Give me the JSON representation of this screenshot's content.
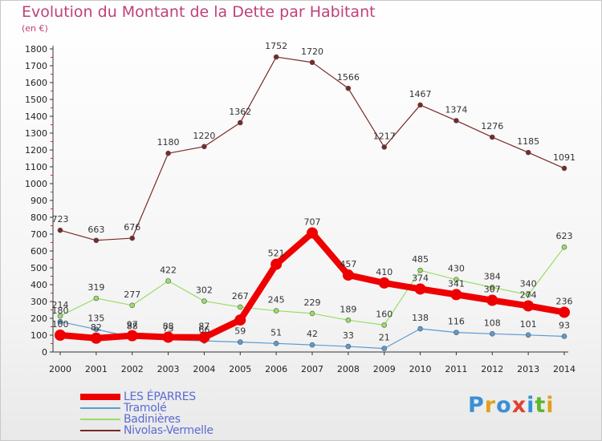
{
  "header": {
    "title": "Evolution du Montant de la Dette par Habitant",
    "subtitle": "(en €)"
  },
  "logo": {
    "text": "Proxiti"
  },
  "colors": {
    "title": "#c0407a",
    "les_eparres": "#ee0000",
    "tramole": "#5b9bd0",
    "badinieres": "#99dd66",
    "nivolas": "#7a2828",
    "legend_text": "#5a6bd4"
  },
  "chart_data": {
    "type": "line",
    "title": "Evolution du Montant de la Dette par Habitant",
    "ylabel": "(en €)",
    "xlabel": "",
    "ylim": [
      0,
      1800
    ],
    "yticks": [
      0,
      100,
      200,
      300,
      400,
      500,
      600,
      700,
      800,
      900,
      1000,
      1100,
      1200,
      1300,
      1400,
      1500,
      1600,
      1700,
      1800
    ],
    "x": [
      "2000",
      "2001",
      "2002",
      "2003",
      "2004",
      "2005",
      "2006",
      "2007",
      "2008",
      "2009",
      "2010",
      "2011",
      "2012",
      "2013",
      "2014"
    ],
    "grid": false,
    "legend_position": "bottom-left",
    "series": [
      {
        "name": "LES ÉPARRES",
        "color": "#ee0000",
        "values": [
          100,
          82,
          97,
          88,
          87,
          190,
          521,
          707,
          457,
          410,
          374,
          341,
          307,
          274,
          236
        ],
        "labels": [
          "100",
          "82",
          "97",
          "88",
          "87",
          "",
          "521",
          "707",
          "457",
          "410",
          "374",
          "341",
          "307",
          "274",
          "236"
        ]
      },
      {
        "name": "Tramolé",
        "color": "#5b9bd0",
        "values": [
          180,
          135,
          88,
          73,
          66,
          59,
          51,
          42,
          33,
          21,
          138,
          116,
          108,
          101,
          93
        ],
        "labels": [
          "180",
          "135",
          "88",
          "73",
          "66",
          "59",
          "51",
          "42",
          "33",
          "21",
          "138",
          "116",
          "108",
          "101",
          "93"
        ]
      },
      {
        "name": "Badinières",
        "color": "#99dd66",
        "values": [
          214,
          319,
          277,
          422,
          302,
          267,
          245,
          229,
          189,
          160,
          485,
          430,
          384,
          340,
          623
        ],
        "labels": [
          "214",
          "319",
          "277",
          "422",
          "302",
          "267",
          "245",
          "229",
          "189",
          "160",
          "485",
          "430",
          "384",
          "340",
          "623"
        ]
      },
      {
        "name": "Nivolas-Vermelle",
        "color": "#7a2828",
        "values": [
          723,
          663,
          676,
          1180,
          1220,
          1362,
          1752,
          1720,
          1566,
          1217,
          1467,
          1374,
          1276,
          1185,
          1091
        ],
        "labels": [
          "723",
          "663",
          "676",
          "1180",
          "1220",
          "1362",
          "1752",
          "1720",
          "1566",
          "1217",
          "1467",
          "1374",
          "1276",
          "1185",
          "1091"
        ]
      }
    ]
  }
}
